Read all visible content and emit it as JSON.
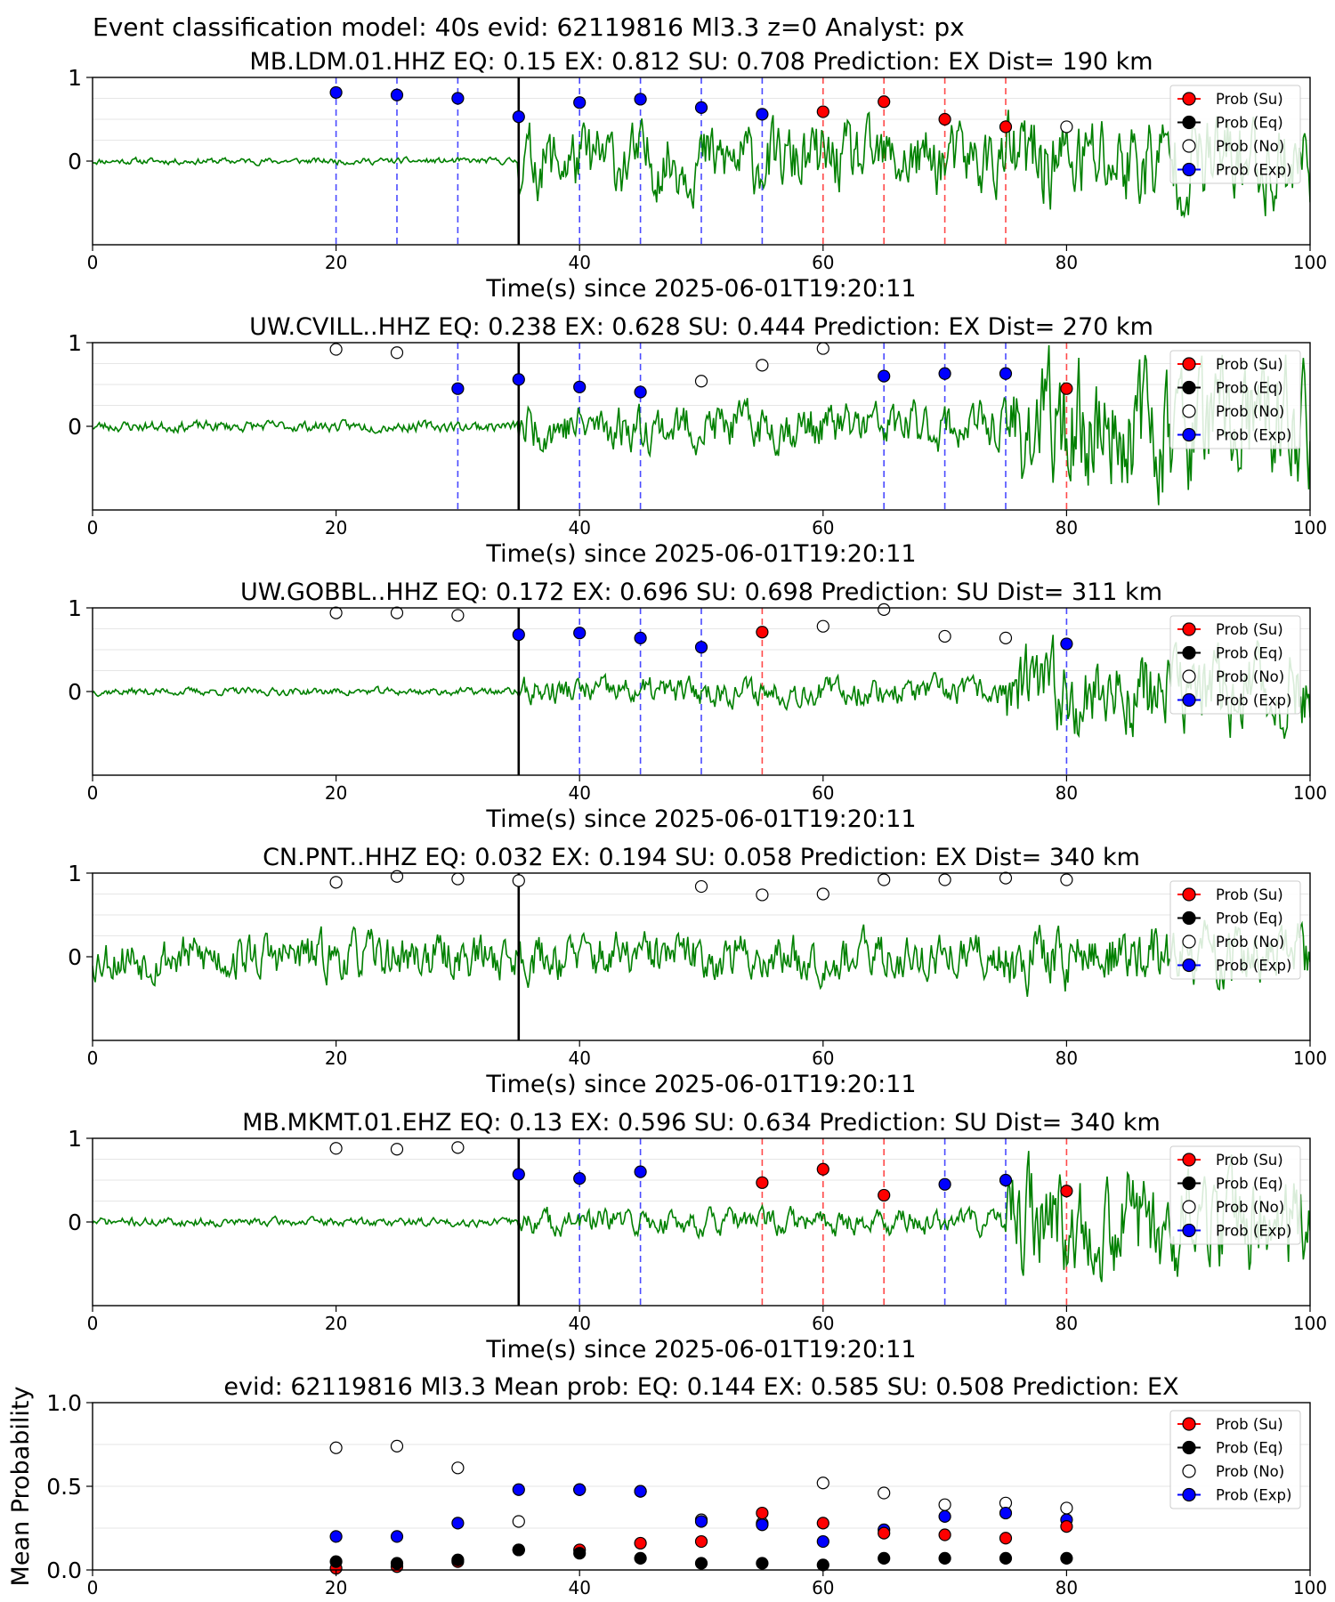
{
  "suptitle": "Event classification model: 40s evid: 62119816 Ml3.3 z=0 Analyst: px",
  "legend": [
    "Prob (Su)",
    "Prob (Eq)",
    "Prob (No)",
    "Prob (Exp)"
  ],
  "colors": {
    "waveform": "#008000",
    "su": "#ff0000",
    "eq": "#000000",
    "no": "#ffffff",
    "exp": "#0000ff",
    "vline_exp": "#4a4aff",
    "vline_su": "#ff4a4a",
    "pick": "#000000",
    "grid": "#e6e6e6"
  },
  "chart_data": [
    {
      "type": "scatter",
      "title": "MB.LDM.01.HHZ   EQ: 0.15   EX: 0.812  SU: 0.708    Prediction: EX    Dist= 190 km",
      "xlabel": "Time(s) since 2025-06-01T19:20:11",
      "ylabel": "",
      "xlim": [
        0,
        100
      ],
      "ylim": [
        -1,
        1
      ],
      "xticks": [
        0,
        20,
        40,
        60,
        80,
        100
      ],
      "yticks": [
        0,
        1
      ],
      "pick_time": 35,
      "waveform": {
        "pre_amp": 0.03,
        "post_amp": 0.33,
        "late_amp": 0.45,
        "seed": 11
      },
      "points": [
        {
          "t": 20,
          "cls": "exp",
          "p": 0.82
        },
        {
          "t": 25,
          "cls": "exp",
          "p": 0.79
        },
        {
          "t": 30,
          "cls": "exp",
          "p": 0.75
        },
        {
          "t": 35,
          "cls": "exp",
          "p": 0.53
        },
        {
          "t": 40,
          "cls": "exp",
          "p": 0.7
        },
        {
          "t": 45,
          "cls": "exp",
          "p": 0.74
        },
        {
          "t": 50,
          "cls": "exp",
          "p": 0.64
        },
        {
          "t": 55,
          "cls": "exp",
          "p": 0.56
        },
        {
          "t": 60,
          "cls": "su",
          "p": 0.59
        },
        {
          "t": 65,
          "cls": "su",
          "p": 0.71
        },
        {
          "t": 70,
          "cls": "su",
          "p": 0.5
        },
        {
          "t": 75,
          "cls": "su",
          "p": 0.41
        },
        {
          "t": 80,
          "cls": "no",
          "p": 0.41
        }
      ]
    },
    {
      "type": "scatter",
      "title": "UW.CVILL..HHZ   EQ: 0.238  EX: 0.628  SU: 0.444    Prediction: EX    Dist= 270 km",
      "xlabel": "Time(s) since 2025-06-01T19:20:11",
      "ylabel": "",
      "xlim": [
        0,
        100
      ],
      "ylim": [
        -1,
        1
      ],
      "xticks": [
        0,
        20,
        40,
        60,
        80,
        100
      ],
      "yticks": [
        0,
        1
      ],
      "pick_time": 35,
      "waveform": {
        "pre_amp": 0.05,
        "post_amp": 0.22,
        "late_amp": 0.6,
        "seed": 23
      },
      "points": [
        {
          "t": 20,
          "cls": "no",
          "p": 0.92
        },
        {
          "t": 25,
          "cls": "no",
          "p": 0.88
        },
        {
          "t": 30,
          "cls": "exp",
          "p": 0.45
        },
        {
          "t": 35,
          "cls": "exp",
          "p": 0.56
        },
        {
          "t": 40,
          "cls": "exp",
          "p": 0.47
        },
        {
          "t": 45,
          "cls": "exp",
          "p": 0.41
        },
        {
          "t": 50,
          "cls": "no",
          "p": 0.54
        },
        {
          "t": 55,
          "cls": "no",
          "p": 0.73
        },
        {
          "t": 60,
          "cls": "no",
          "p": 0.93
        },
        {
          "t": 65,
          "cls": "exp",
          "p": 0.6
        },
        {
          "t": 70,
          "cls": "exp",
          "p": 0.63
        },
        {
          "t": 75,
          "cls": "exp",
          "p": 0.63
        },
        {
          "t": 80,
          "cls": "su",
          "p": 0.45
        }
      ]
    },
    {
      "type": "scatter",
      "title": "UW.GOBBL..HHZ   EQ: 0.172  EX: 0.696  SU: 0.698    Prediction: SU    Dist= 311 km",
      "xlabel": "Time(s) since 2025-06-01T19:20:11",
      "ylabel": "",
      "xlim": [
        0,
        100
      ],
      "ylim": [
        -1,
        1
      ],
      "xticks": [
        0,
        20,
        40,
        60,
        80,
        100
      ],
      "yticks": [
        0,
        1
      ],
      "pick_time": 35,
      "waveform": {
        "pre_amp": 0.035,
        "post_amp": 0.13,
        "late_amp": 0.4,
        "seed": 37
      },
      "points": [
        {
          "t": 20,
          "cls": "no",
          "p": 0.94
        },
        {
          "t": 25,
          "cls": "no",
          "p": 0.94
        },
        {
          "t": 30,
          "cls": "no",
          "p": 0.91
        },
        {
          "t": 35,
          "cls": "exp",
          "p": 0.68
        },
        {
          "t": 40,
          "cls": "exp",
          "p": 0.7
        },
        {
          "t": 45,
          "cls": "exp",
          "p": 0.64
        },
        {
          "t": 50,
          "cls": "exp",
          "p": 0.53
        },
        {
          "t": 55,
          "cls": "su",
          "p": 0.71
        },
        {
          "t": 60,
          "cls": "no",
          "p": 0.78
        },
        {
          "t": 65,
          "cls": "no",
          "p": 0.98
        },
        {
          "t": 70,
          "cls": "no",
          "p": 0.66
        },
        {
          "t": 75,
          "cls": "no",
          "p": 0.64
        },
        {
          "t": 80,
          "cls": "exp",
          "p": 0.57
        }
      ]
    },
    {
      "type": "scatter",
      "title": "CN.PNT..HHZ   EQ: 0.032  EX: 0.194  SU: 0.058    Prediction: EX    Dist= 340 km",
      "xlabel": "Time(s) since 2025-06-01T19:20:11",
      "ylabel": "",
      "xlim": [
        0,
        100
      ],
      "ylim": [
        -1,
        1
      ],
      "xticks": [
        0,
        20,
        40,
        60,
        80,
        100
      ],
      "yticks": [
        0,
        1
      ],
      "pick_time": 35,
      "waveform": {
        "pre_amp": 0.22,
        "post_amp": 0.22,
        "late_amp": 0.3,
        "seed": 53
      },
      "points": [
        {
          "t": 20,
          "cls": "no",
          "p": 0.89
        },
        {
          "t": 25,
          "cls": "no",
          "p": 0.96
        },
        {
          "t": 30,
          "cls": "no",
          "p": 0.93
        },
        {
          "t": 35,
          "cls": "no",
          "p": 0.91
        },
        {
          "t": 50,
          "cls": "no",
          "p": 0.84
        },
        {
          "t": 55,
          "cls": "no",
          "p": 0.74
        },
        {
          "t": 60,
          "cls": "no",
          "p": 0.75
        },
        {
          "t": 65,
          "cls": "no",
          "p": 0.92
        },
        {
          "t": 70,
          "cls": "no",
          "p": 0.92
        },
        {
          "t": 75,
          "cls": "no",
          "p": 0.94
        },
        {
          "t": 80,
          "cls": "no",
          "p": 0.92
        }
      ]
    },
    {
      "type": "scatter",
      "title": "MB.MKMT.01.EHZ   EQ: 0.13  EX: 0.596  SU: 0.634    Prediction: SU    Dist= 340 km",
      "xlabel": "Time(s) since 2025-06-01T19:20:11",
      "ylabel": "",
      "xlim": [
        0,
        100
      ],
      "ylim": [
        -1,
        1
      ],
      "xticks": [
        0,
        20,
        40,
        60,
        80,
        100
      ],
      "yticks": [
        0,
        1
      ],
      "pick_time": 35,
      "waveform": {
        "pre_amp": 0.04,
        "post_amp": 0.12,
        "late_amp": 0.5,
        "seed": 71
      },
      "points": [
        {
          "t": 20,
          "cls": "no",
          "p": 0.88
        },
        {
          "t": 25,
          "cls": "no",
          "p": 0.87
        },
        {
          "t": 30,
          "cls": "no",
          "p": 0.89
        },
        {
          "t": 35,
          "cls": "exp",
          "p": 0.57
        },
        {
          "t": 40,
          "cls": "exp",
          "p": 0.52
        },
        {
          "t": 45,
          "cls": "exp",
          "p": 0.6
        },
        {
          "t": 55,
          "cls": "su",
          "p": 0.47
        },
        {
          "t": 60,
          "cls": "su",
          "p": 0.63
        },
        {
          "t": 65,
          "cls": "su",
          "p": 0.32
        },
        {
          "t": 70,
          "cls": "exp",
          "p": 0.45
        },
        {
          "t": 75,
          "cls": "exp",
          "p": 0.5
        },
        {
          "t": 80,
          "cls": "su",
          "p": 0.37
        }
      ]
    },
    {
      "type": "scatter",
      "title": "evid: 62119816  Ml3.3   Mean prob:   EQ: 0.144  EX: 0.585  SU: 0.508   Prediction: EX",
      "xlabel": "",
      "ylabel": "Mean Probability",
      "xlim": [
        0,
        100
      ],
      "ylim": [
        0,
        1
      ],
      "xticks": [
        0,
        20,
        40,
        60,
        80,
        100
      ],
      "yticks": [
        0.0,
        0.5,
        1.0
      ],
      "ytick_labels": [
        "0.0",
        "0.5",
        "1.0"
      ],
      "x": [
        20,
        25,
        30,
        35,
        40,
        45,
        50,
        55,
        60,
        65,
        70,
        75,
        80
      ],
      "series": [
        {
          "cls": "no",
          "name": "Prob (No)",
          "values": [
            0.73,
            0.74,
            0.61,
            0.29,
            0.48,
            0.47,
            0.3,
            0.28,
            0.52,
            0.46,
            0.39,
            0.4,
            0.37
          ]
        },
        {
          "cls": "exp",
          "name": "Prob (Exp)",
          "values": [
            0.2,
            0.2,
            0.28,
            0.48,
            0.48,
            0.47,
            0.29,
            0.27,
            0.17,
            0.24,
            0.32,
            0.34,
            0.3
          ]
        },
        {
          "cls": "su",
          "name": "Prob (Su)",
          "values": [
            0.01,
            0.02,
            0.05,
            0.12,
            0.12,
            0.16,
            0.17,
            0.34,
            0.28,
            0.22,
            0.21,
            0.19,
            0.26
          ]
        },
        {
          "cls": "eq",
          "name": "Prob (Eq)",
          "values": [
            0.05,
            0.04,
            0.06,
            0.12,
            0.1,
            0.07,
            0.04,
            0.04,
            0.03,
            0.07,
            0.07,
            0.07,
            0.07
          ]
        }
      ]
    }
  ]
}
